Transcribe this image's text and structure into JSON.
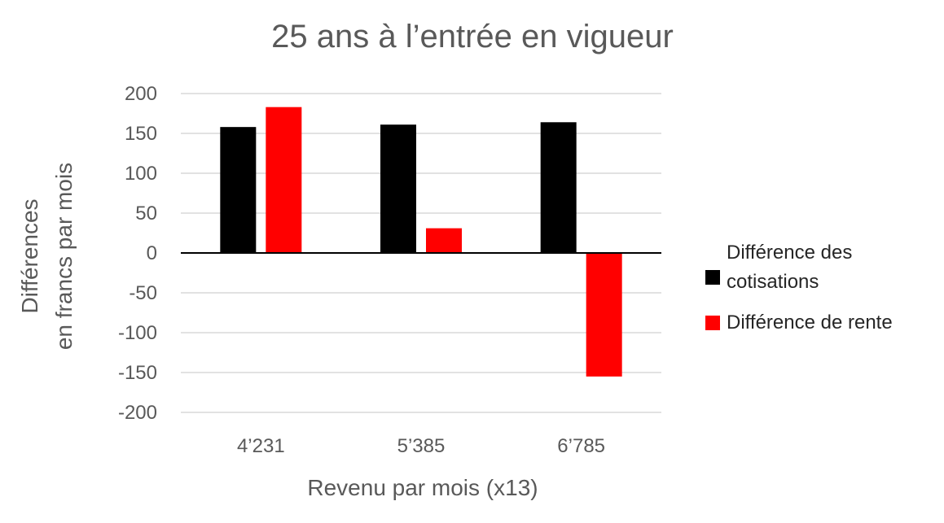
{
  "chart_data": {
    "type": "bar",
    "title": "25 ans à l’entrée en vigueur",
    "xlabel": "Revenu par mois (x13)",
    "ylabel_lines": [
      "Différences",
      "en francs par mois"
    ],
    "categories": [
      "4’231",
      "5’385",
      "6’785"
    ],
    "ylim": [
      -200,
      200
    ],
    "yticks": [
      200,
      150,
      100,
      50,
      0,
      -50,
      -100,
      -150,
      -200
    ],
    "grid": true,
    "legend_position": "right",
    "series": [
      {
        "name_lines": [
          "Différence des",
          "cotisations"
        ],
        "color": "#000000",
        "values": [
          158,
          161,
          164
        ]
      },
      {
        "name_lines": [
          "Différence de rente"
        ],
        "color": "#ff0000",
        "values": [
          183,
          31,
          -155
        ]
      }
    ]
  }
}
